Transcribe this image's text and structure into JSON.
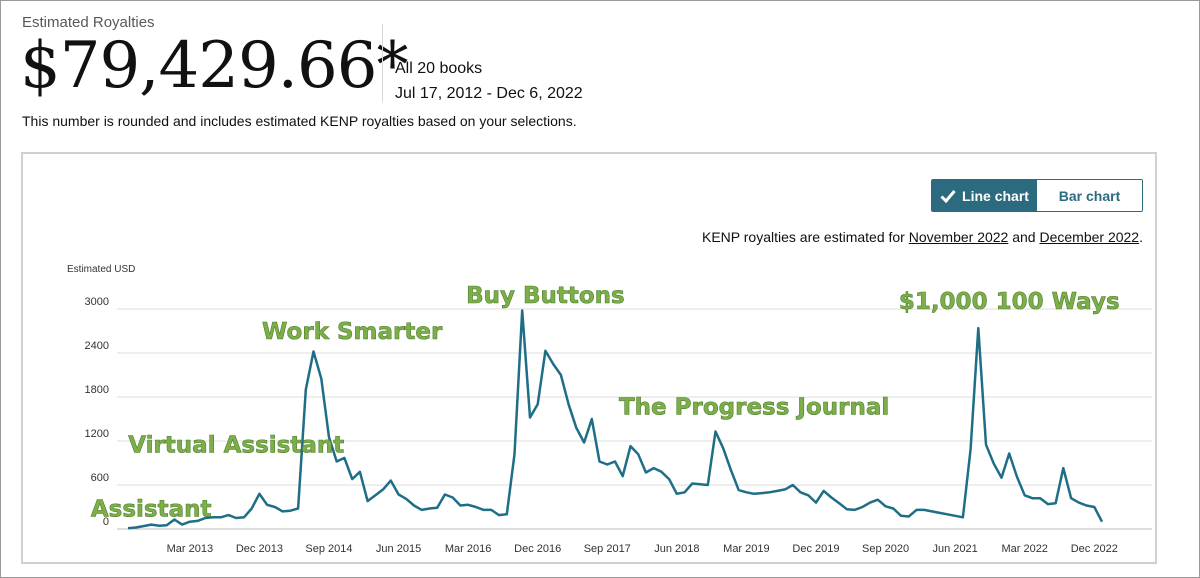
{
  "header": {
    "label": "Estimated Royalties",
    "amount": "$79,429.66*",
    "books": "All 20 books",
    "date_range": "Jul 17, 2012 - Dec 6, 2022",
    "note": "This number is rounded and includes estimated KENP royalties based on your selections."
  },
  "toggle": {
    "line_label": "Line chart",
    "bar_label": "Bar chart"
  },
  "kenp": {
    "prefix": "KENP royalties are estimated for ",
    "month1": "November 2022",
    "mid": " and ",
    "month2": "December 2022",
    "suffix": "."
  },
  "colors": {
    "line": "#1f6e87",
    "accent": "#2c6b7f",
    "annotation": "#7cae49",
    "grid": "#dddddd"
  },
  "chart_data": {
    "type": "line",
    "title": "",
    "xlabel": "",
    "ylabel": "Estimated USD",
    "ylim": [
      0,
      3000
    ],
    "yticks": [
      0,
      600,
      1200,
      1800,
      2400,
      3000
    ],
    "x_start": "Jul 2012",
    "x_end": "Dec 2022",
    "xtick_labels": [
      {
        "label": "Mar 2013",
        "index": 8
      },
      {
        "label": "Dec 2013",
        "index": 17
      },
      {
        "label": "Sep 2014",
        "index": 26
      },
      {
        "label": "Jun 2015",
        "index": 35
      },
      {
        "label": "Mar 2016",
        "index": 44
      },
      {
        "label": "Dec 2016",
        "index": 53
      },
      {
        "label": "Sep 2017",
        "index": 62
      },
      {
        "label": "Jun 2018",
        "index": 71
      },
      {
        "label": "Mar 2019",
        "index": 80
      },
      {
        "label": "Dec 2019",
        "index": 89
      },
      {
        "label": "Sep 2020",
        "index": 98
      },
      {
        "label": "Jun 2021",
        "index": 107
      },
      {
        "label": "Mar 2022",
        "index": 116
      },
      {
        "label": "Dec 2022",
        "index": 125
      }
    ],
    "series": [
      {
        "name": "Estimated USD",
        "values": [
          10,
          20,
          40,
          60,
          45,
          50,
          130,
          60,
          100,
          110,
          150,
          160,
          160,
          190,
          150,
          160,
          280,
          480,
          330,
          300,
          240,
          250,
          280,
          1900,
          2420,
          2050,
          1250,
          920,
          970,
          680,
          780,
          380,
          460,
          540,
          660,
          470,
          410,
          320,
          260,
          280,
          290,
          470,
          430,
          320,
          330,
          300,
          260,
          260,
          190,
          200,
          1020,
          2980,
          1520,
          1700,
          2430,
          2250,
          2100,
          1700,
          1380,
          1180,
          1500,
          920,
          880,
          920,
          720,
          1130,
          1020,
          770,
          830,
          780,
          680,
          480,
          500,
          620,
          610,
          600,
          1330,
          1100,
          800,
          530,
          500,
          480,
          490,
          500,
          520,
          540,
          600,
          500,
          460,
          360,
          520,
          430,
          350,
          270,
          260,
          300,
          360,
          400,
          310,
          280,
          180,
          170,
          260,
          260,
          240,
          220,
          200,
          180,
          160,
          1090,
          2740,
          1150,
          890,
          700,
          1030,
          710,
          460,
          420,
          420,
          340,
          350,
          830,
          420,
          360,
          320,
          300,
          100
        ]
      }
    ],
    "annotations": [
      {
        "text": "Virtual Assistant",
        "index": 14,
        "value": 1040
      },
      {
        "text": "Assistant",
        "index": 3,
        "value": 170
      },
      {
        "text": "Work Smarter",
        "index": 29,
        "value": 2590
      },
      {
        "text": "Buy Buttons",
        "index": 54,
        "value": 3080
      },
      {
        "text": "The Progress Journal",
        "index": 81,
        "value": 1560
      },
      {
        "text": "$1,000 100 Ways",
        "index": 114,
        "value": 3000
      }
    ]
  }
}
